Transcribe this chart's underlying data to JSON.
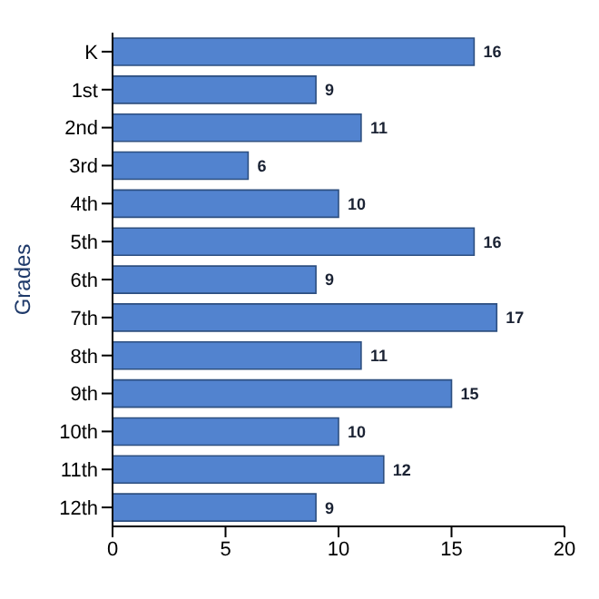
{
  "chart_data": {
    "type": "bar",
    "orientation": "horizontal",
    "ylabel": "Grades",
    "categories": [
      "K",
      "1st",
      "2nd",
      "3rd",
      "4th",
      "5th",
      "6th",
      "7th",
      "8th",
      "9th",
      "10th",
      "11th",
      "12th"
    ],
    "values": [
      16,
      9,
      11,
      6,
      10,
      16,
      9,
      17,
      11,
      15,
      10,
      12,
      9
    ],
    "color": "#5283cf",
    "xlim": [
      0,
      20
    ],
    "xticks": [
      0,
      5,
      10,
      15,
      20
    ],
    "grid": false,
    "data_labels": true
  }
}
